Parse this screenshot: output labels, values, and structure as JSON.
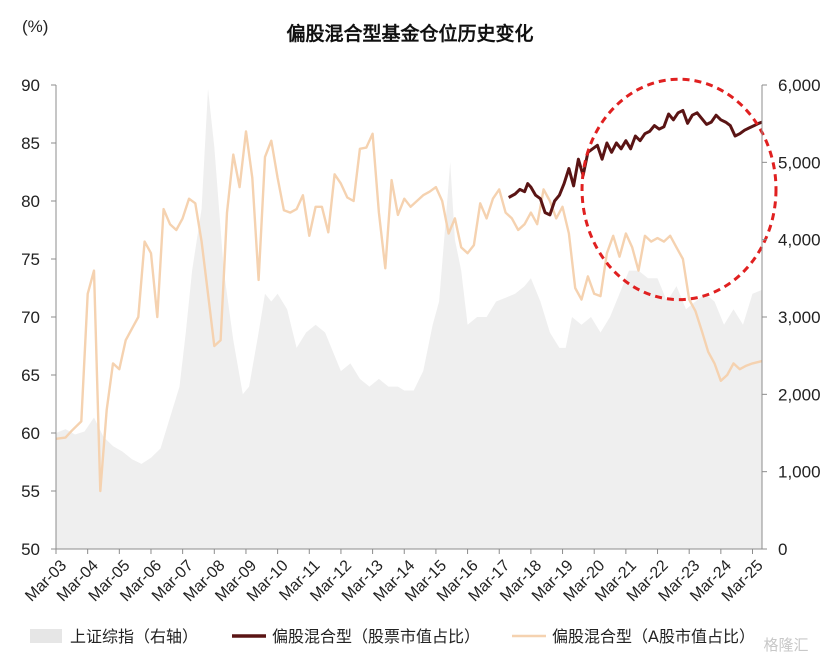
{
  "chart_data": {
    "type": "line",
    "title": "偏股混合型基金仓位历史变化",
    "y_unit": "(%)",
    "xlabel": "",
    "ylabel_left": "",
    "ylabel_right": "",
    "x_tick_labels": [
      "Mar-03",
      "Mar-04",
      "Mar-05",
      "Mar-06",
      "Mar-07",
      "Mar-08",
      "Mar-09",
      "Mar-10",
      "Mar-11",
      "Mar-12",
      "Mar-13",
      "Mar-14",
      "Mar-15",
      "Mar-16",
      "Mar-17",
      "Mar-18",
      "Mar-19",
      "Mar-20",
      "Mar-21",
      "Mar-22",
      "Mar-23",
      "Mar-24",
      "Mar-25"
    ],
    "x_range": [
      2003.0,
      2025.3
    ],
    "left_axis": {
      "ylim": [
        50,
        90
      ],
      "ticks": [
        "50",
        "55",
        "60",
        "65",
        "70",
        "75",
        "80",
        "85",
        "90"
      ]
    },
    "right_axis": {
      "ylim": [
        0,
        6000
      ],
      "ticks": [
        "0",
        "1,000",
        "2,000",
        "3,000",
        "4,000",
        "5,000",
        "6,000"
      ]
    },
    "grid": false,
    "legend_position": "bottom",
    "series": [
      {
        "name": "上证综指（右轴）",
        "axis": "right",
        "style": "area",
        "color": "#efefef",
        "x": [
          2003.0,
          2003.3,
          2003.6,
          2003.9,
          2004.2,
          2004.5,
          2004.8,
          2005.1,
          2005.4,
          2005.7,
          2006.0,
          2006.3,
          2006.6,
          2006.9,
          2007.1,
          2007.3,
          2007.6,
          2007.8,
          2008.0,
          2008.3,
          2008.6,
          2008.9,
          2009.1,
          2009.4,
          2009.6,
          2009.8,
          2010.0,
          2010.3,
          2010.6,
          2010.9,
          2011.2,
          2011.5,
          2011.8,
          2012.0,
          2012.3,
          2012.6,
          2012.9,
          2013.2,
          2013.5,
          2013.8,
          2014.0,
          2014.3,
          2014.6,
          2014.9,
          2015.1,
          2015.3,
          2015.45,
          2015.6,
          2015.8,
          2016.0,
          2016.3,
          2016.6,
          2016.9,
          2017.2,
          2017.5,
          2017.8,
          2018.0,
          2018.3,
          2018.6,
          2018.9,
          2019.1,
          2019.3,
          2019.6,
          2019.9,
          2020.2,
          2020.5,
          2020.8,
          2021.1,
          2021.4,
          2021.7,
          2022.0,
          2022.3,
          2022.6,
          2022.9,
          2023.2,
          2023.5,
          2023.8,
          2024.1,
          2024.4,
          2024.7,
          2025.0,
          2025.3
        ],
        "values": [
          1500,
          1550,
          1480,
          1520,
          1700,
          1450,
          1330,
          1260,
          1160,
          1100,
          1180,
          1300,
          1700,
          2100,
          2800,
          3600,
          4400,
          5950,
          5200,
          3600,
          2700,
          2000,
          2100,
          2800,
          3300,
          3200,
          3300,
          3100,
          2600,
          2800,
          2900,
          2800,
          2500,
          2300,
          2400,
          2200,
          2100,
          2200,
          2100,
          2100,
          2050,
          2050,
          2300,
          2900,
          3200,
          4200,
          5000,
          4000,
          3600,
          2900,
          3000,
          3000,
          3200,
          3250,
          3300,
          3400,
          3500,
          3200,
          2800,
          2600,
          2600,
          3000,
          2900,
          3000,
          2800,
          3000,
          3300,
          3600,
          3600,
          3500,
          3500,
          3200,
          3400,
          3100,
          3200,
          3300,
          3200,
          2900,
          3100,
          2900,
          3300,
          3350
        ]
      },
      {
        "name": "偏股混合型（股票市值占比）",
        "axis": "left",
        "style": "line",
        "color": "#5a1414",
        "x": [
          2017.3,
          2017.5,
          2017.65,
          2017.8,
          2017.9,
          2018.0,
          2018.15,
          2018.3,
          2018.45,
          2018.6,
          2018.75,
          2018.9,
          2019.05,
          2019.2,
          2019.35,
          2019.5,
          2019.65,
          2019.8,
          2019.95,
          2020.1,
          2020.25,
          2020.4,
          2020.55,
          2020.7,
          2020.85,
          2021.0,
          2021.15,
          2021.3,
          2021.45,
          2021.6,
          2021.75,
          2021.9,
          2022.05,
          2022.2,
          2022.35,
          2022.5,
          2022.65,
          2022.8,
          2022.95,
          2023.1,
          2023.25,
          2023.4,
          2023.55,
          2023.7,
          2023.85,
          2024.0,
          2024.15,
          2024.3,
          2024.45,
          2024.6,
          2024.75,
          2024.9,
          2025.05,
          2025.2,
          2025.3
        ],
        "values": [
          80.3,
          80.6,
          81.0,
          80.8,
          81.5,
          81.2,
          80.5,
          80.2,
          79.0,
          78.8,
          80.0,
          80.5,
          81.5,
          82.8,
          81.3,
          83.6,
          82.2,
          84.2,
          84.5,
          84.8,
          83.6,
          85.0,
          84.2,
          85.0,
          84.5,
          85.2,
          84.5,
          85.6,
          85.2,
          85.8,
          86.0,
          86.5,
          86.2,
          86.4,
          87.5,
          87.0,
          87.6,
          87.8,
          86.7,
          87.4,
          87.6,
          87.1,
          86.6,
          86.8,
          87.4,
          87.0,
          86.8,
          86.5,
          85.6,
          85.8,
          86.1,
          86.3,
          86.5,
          86.7,
          86.8
        ]
      },
      {
        "name": "偏股混合型（A股市值占比）",
        "axis": "left",
        "style": "line",
        "color": "#f5d2b0",
        "x": [
          2003.0,
          2003.3,
          2003.5,
          2003.8,
          2004.0,
          2004.2,
          2004.4,
          2004.6,
          2004.8,
          2005.0,
          2005.2,
          2005.4,
          2005.6,
          2005.8,
          2006.0,
          2006.2,
          2006.4,
          2006.6,
          2006.8,
          2007.0,
          2007.2,
          2007.4,
          2007.6,
          2007.8,
          2008.0,
          2008.2,
          2008.4,
          2008.6,
          2008.8,
          2009.0,
          2009.2,
          2009.4,
          2009.6,
          2009.8,
          2010.0,
          2010.2,
          2010.4,
          2010.6,
          2010.8,
          2011.0,
          2011.2,
          2011.4,
          2011.6,
          2011.8,
          2012.0,
          2012.2,
          2012.4,
          2012.6,
          2012.8,
          2013.0,
          2013.2,
          2013.4,
          2013.6,
          2013.8,
          2014.0,
          2014.2,
          2014.4,
          2014.6,
          2014.8,
          2015.0,
          2015.2,
          2015.4,
          2015.6,
          2015.8,
          2016.0,
          2016.2,
          2016.4,
          2016.6,
          2016.8,
          2017.0,
          2017.2,
          2017.4,
          2017.6,
          2017.8,
          2018.0,
          2018.2,
          2018.4,
          2018.6,
          2018.8,
          2019.0,
          2019.2,
          2019.4,
          2019.6,
          2019.8,
          2020.0,
          2020.2,
          2020.4,
          2020.6,
          2020.8,
          2021.0,
          2021.2,
          2021.4,
          2021.6,
          2021.8,
          2022.0,
          2022.2,
          2022.4,
          2022.6,
          2022.8,
          2023.0,
          2023.2,
          2023.4,
          2023.6,
          2023.8,
          2024.0,
          2024.2,
          2024.4,
          2024.6,
          2024.8,
          2025.0,
          2025.3
        ],
        "values": [
          59.5,
          59.6,
          60.2,
          61.0,
          72.0,
          74.0,
          55.0,
          62.0,
          66.0,
          65.5,
          68.0,
          69.0,
          70.0,
          76.5,
          75.5,
          70.0,
          79.3,
          78.0,
          77.5,
          78.5,
          80.2,
          79.8,
          76.5,
          72.0,
          67.5,
          68.0,
          79.0,
          84.0,
          81.2,
          86.0,
          82.0,
          73.2,
          83.8,
          85.2,
          82.0,
          79.2,
          79.0,
          79.3,
          80.5,
          77.0,
          79.5,
          79.5,
          77.3,
          82.3,
          81.5,
          80.3,
          80.0,
          84.5,
          84.6,
          85.8,
          79.0,
          74.2,
          81.8,
          78.8,
          80.2,
          79.5,
          80.0,
          80.5,
          80.8,
          81.2,
          80.0,
          77.2,
          78.5,
          76.0,
          75.5,
          76.2,
          79.8,
          78.5,
          80.2,
          81.0,
          79.0,
          78.5,
          77.5,
          78.0,
          79.0,
          78.0,
          81.0,
          80.0,
          78.5,
          79.5,
          77.2,
          72.5,
          71.5,
          73.5,
          72.0,
          71.8,
          75.5,
          77.0,
          75.2,
          77.2,
          76.0,
          74.0,
          77.0,
          76.5,
          76.8,
          76.5,
          77.0,
          76.0,
          75.0,
          71.5,
          70.5,
          68.8,
          67.0,
          66.0,
          64.5,
          65.0,
          66.0,
          65.5,
          65.8,
          66.0,
          66.2
        ]
      }
    ],
    "annotations": [
      {
        "type": "dashed-ellipse",
        "color": "#e02020",
        "covers_x": [
          2019.3,
          2025.3
        ],
        "covers_left_y": [
          71.5,
          90.5
        ]
      }
    ]
  },
  "watermark": "格隆汇"
}
